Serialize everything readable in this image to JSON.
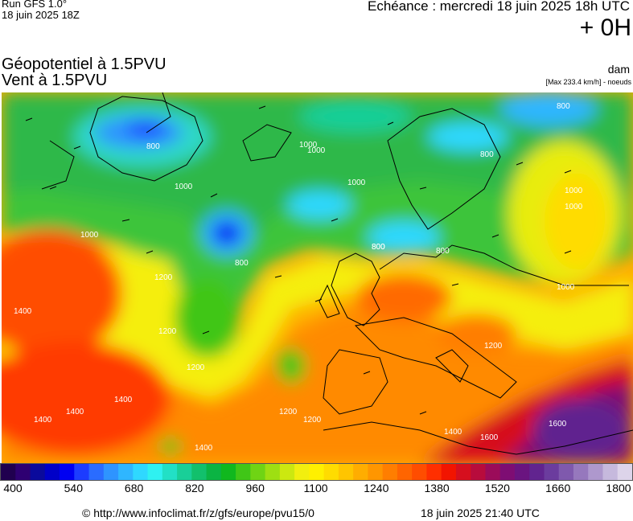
{
  "header": {
    "model": "Run GFS 1.0°",
    "run_time": "18 juin 2025 18Z",
    "echeance": "Echéance : mercredi 18 juin 2025 18h UTC",
    "offset": "+ 0H"
  },
  "titles": {
    "line1": "Géopotentiel à 1.5PVU",
    "line2": "Vent à 1.5PVU"
  },
  "unit": "dam",
  "max_wind": "[Max 233.4 km/h] - noeuds",
  "map": {
    "contour_labels": [
      "800",
      "1000",
      "800",
      "1000",
      "1000",
      "800",
      "800",
      "1000",
      "1200",
      "1400",
      "1000",
      "800",
      "1200",
      "1200",
      "1400",
      "1400",
      "1400",
      "1400",
      "1200",
      "800",
      "1000",
      "800",
      "1000",
      "1200",
      "1600",
      "1400",
      "1600",
      "1200",
      "1000"
    ]
  },
  "colorbar": {
    "colors": [
      "#20004f",
      "#2e0072",
      "#0a0a9c",
      "#0000c8",
      "#0000f2",
      "#1c3cff",
      "#2a6cff",
      "#2e94ff",
      "#2fb6ff",
      "#2fd8ff",
      "#2ff1f1",
      "#22e0c6",
      "#19cf98",
      "#12c06c",
      "#0bb443",
      "#10b81e",
      "#40c617",
      "#6fd414",
      "#9edf12",
      "#cce810",
      "#f2ef0f",
      "#fff000",
      "#ffdc00",
      "#ffc500",
      "#ffad00",
      "#ff9600",
      "#ff7e00",
      "#ff6500",
      "#ff4d00",
      "#ff2f00",
      "#f21400",
      "#d60f1e",
      "#b80c3c",
      "#9b0c5a",
      "#7e0d73",
      "#6a1480",
      "#61248f",
      "#6b3c9e",
      "#7f59ad",
      "#9678bd",
      "#ae98cd",
      "#c6b9dd",
      "#ddd4ea"
    ],
    "ticks": [
      "400",
      "540",
      "680",
      "820",
      "960",
      "1100",
      "1240",
      "1380",
      "1520",
      "1660",
      "1800"
    ]
  },
  "footer": {
    "copyright": "© http://www.infoclimat.fr/z/gfs/europe/pvu15/0",
    "generated": "18 juin 2025 21:40 UTC"
  }
}
